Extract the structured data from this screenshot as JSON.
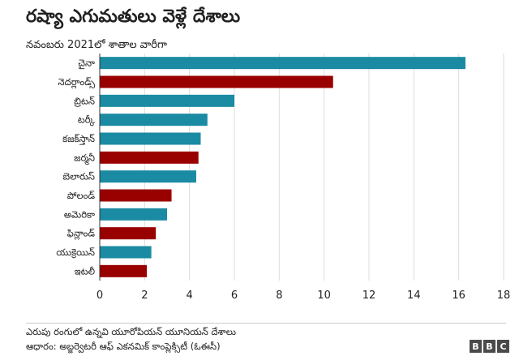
{
  "header": {
    "title": "రష్యా ఎగుమతులు వెళ్లే దేశాలు",
    "subtitle": "నవంబరు 2021లో శాతాల వారీగా"
  },
  "footer": {
    "note": "ఎరుపు రంగులో ఉన్నవి యూరోపియన్ యూనియన్ దేశాలు",
    "source": "ఆధారం: అబ్జర్వెటరీ ఆఫ్ ఎకనమిక్ కాంప్లెక్సిటీ (ఓఈసీ)",
    "logo_letters": [
      "B",
      "B",
      "C"
    ]
  },
  "colors": {
    "eu": "#990000",
    "non_eu": "#1a8ba3",
    "grid": "#dddddd",
    "axis": "#333333"
  },
  "chart_data": {
    "type": "bar",
    "orientation": "horizontal",
    "title": "రష్యా ఎగుమతులు వెళ్లే దేశాలు",
    "subtitle": "నవంబరు 2021లో శాతాల వారీగా",
    "categories": [
      "చైనా",
      "నెదర్లాండ్స్",
      "బ్రిటన్",
      "టర్కీ",
      "కజక్‌స్తాన్",
      "జర్మనీ",
      "బెలారుస్",
      "పోలండ్",
      "అమెరికా",
      "ఫిన్లాండ్",
      "యుక్రెయిన్",
      "ఇటలీ"
    ],
    "values": [
      16.3,
      10.4,
      6.0,
      4.8,
      4.5,
      4.4,
      4.3,
      3.2,
      3.0,
      2.5,
      2.3,
      2.1
    ],
    "eu_member": [
      false,
      true,
      false,
      false,
      false,
      true,
      false,
      true,
      false,
      true,
      false,
      true
    ],
    "xlim": [
      0,
      18
    ],
    "xticks": [
      0,
      2,
      4,
      6,
      8,
      10,
      12,
      14,
      16,
      18
    ],
    "grid": true,
    "xlabel": "",
    "ylabel": ""
  }
}
